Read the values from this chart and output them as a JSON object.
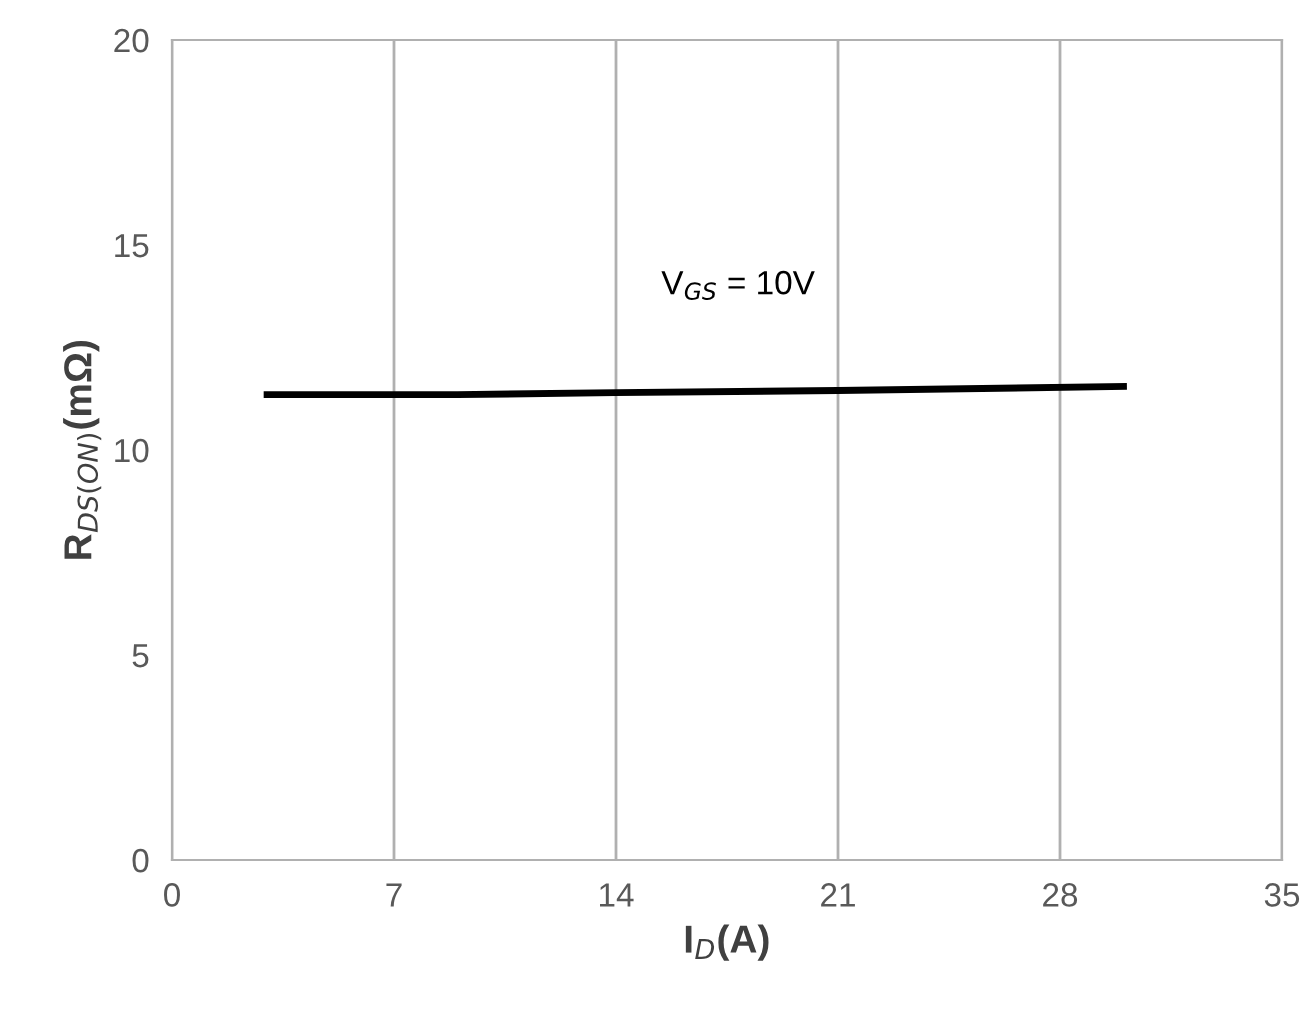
{
  "chart_data": {
    "type": "line",
    "xlabel": "I$_{D}$(A)",
    "ylabel": "R$_{DS(ON)}$(mΩ)",
    "annotations": [
      "V$_{GS}$ = 10V"
    ],
    "series": [
      {
        "color": "#000000",
        "x": [
          3,
          9,
          14,
          21,
          30
        ],
        "values": [
          11.35,
          11.35,
          11.4,
          11.45,
          11.55
        ]
      }
    ],
    "xlim": [
      0,
      35
    ],
    "xticks": [
      0,
      7,
      14,
      21,
      28,
      35
    ],
    "ylim": [
      0,
      20
    ],
    "yticks": [
      0,
      5,
      10,
      15,
      20
    ],
    "grid": "x",
    "legend": false,
    "marker": "none",
    "line_style": "solid"
  }
}
